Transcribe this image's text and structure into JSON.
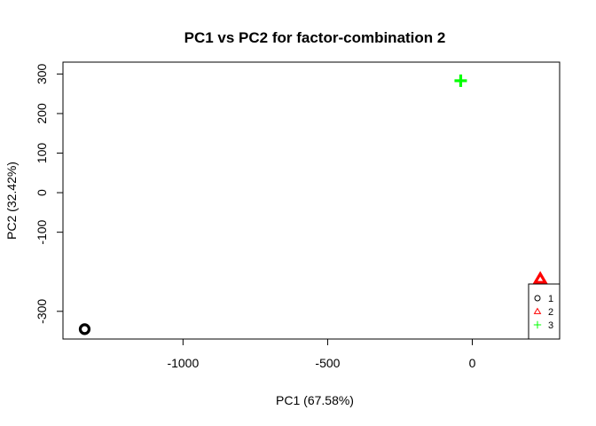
{
  "chart_data": {
    "type": "scatter",
    "title": "PC1 vs PC2 for factor-combination 2",
    "xlabel": "PC1 (67.58%)",
    "ylabel": "PC2 (32.42%)",
    "xlim": [
      -1415,
      302
    ],
    "ylim": [
      -370,
      330
    ],
    "x_ticks": [
      -1000,
      -500,
      0
    ],
    "x_tick_labels": [
      "-1000",
      "-500",
      "0"
    ],
    "y_ticks": [
      -300,
      -100,
      0,
      100,
      200,
      300
    ],
    "y_tick_labels": [
      "-300",
      "-100",
      "0",
      "100",
      "200",
      "300"
    ],
    "grid": false,
    "legend_position": "bottom-right",
    "series": [
      {
        "name": "1",
        "marker": "circle",
        "color": "#000000",
        "x": [
          -1340
        ],
        "y": [
          -345
        ]
      },
      {
        "name": "2",
        "marker": "triangle",
        "color": "#ff0000",
        "x": [
          235
        ],
        "y": [
          -218
        ]
      },
      {
        "name": "3",
        "marker": "plus",
        "color": "#00ff00",
        "x": [
          -40
        ],
        "y": [
          283
        ]
      }
    ]
  }
}
